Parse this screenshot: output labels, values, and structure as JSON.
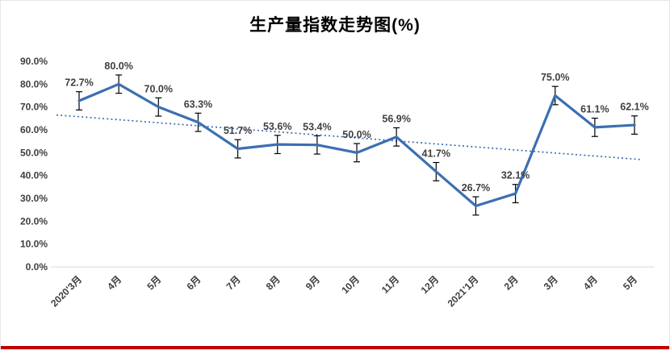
{
  "chart_data": {
    "type": "line",
    "title": "生产量指数走势图(%)",
    "categories": [
      "2020'3月",
      "4月",
      "5月",
      "6月",
      "7月",
      "8月",
      "9月",
      "10月",
      "11月",
      "12月",
      "2021'1月",
      "2月",
      "3月",
      "4月",
      "5月"
    ],
    "values": [
      72.7,
      80.0,
      70.0,
      63.3,
      51.7,
      53.6,
      53.4,
      50.0,
      56.9,
      41.7,
      26.7,
      32.1,
      75.0,
      61.1,
      62.1
    ],
    "data_labels": [
      "72.7%",
      "80.0%",
      "70.0%",
      "63.3%",
      "51.7%",
      "53.6%",
      "53.4%",
      "50.0%",
      "56.9%",
      "41.7%",
      "26.7%",
      "32.1%",
      "75.0%",
      "61.1%",
      "62.1%"
    ],
    "y_ticks": [
      "0.0%",
      "10.0%",
      "20.0%",
      "30.0%",
      "40.0%",
      "50.0%",
      "60.0%",
      "70.0%",
      "80.0%",
      "90.0%"
    ],
    "ylim": [
      0,
      90
    ],
    "error_bar": 4,
    "trendline": {
      "style": "dotted",
      "start": 66.5,
      "end": 47.0
    },
    "grid": false,
    "legend": "none",
    "colors": {
      "line": "#3B6FB3",
      "trendline": "#3B6FB3",
      "error_bar": "#000000",
      "label": "#3f3f3f",
      "tick": "#404040",
      "accent_bottom_border": "#C00000"
    }
  }
}
